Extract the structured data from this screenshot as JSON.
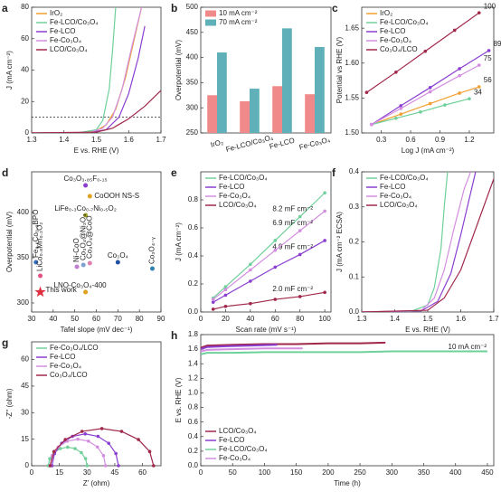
{
  "chart_data": [
    {
      "label": "a",
      "type": "line",
      "xlabel": "E vs. RHE (V)",
      "ylabel": "J (mA cm⁻²)",
      "xlim": [
        1.3,
        1.7
      ],
      "xticks": [
        1.3,
        1.4,
        1.5,
        1.6,
        1.7
      ],
      "ylim": [
        0,
        80
      ],
      "yticks": [
        0,
        20,
        40,
        60,
        80
      ],
      "reference_line": 10,
      "legend": "upper left",
      "series": [
        {
          "name": "IrO₂",
          "color": "#f0a030",
          "x": [
            1.3,
            1.45,
            1.5,
            1.53,
            1.56,
            1.59,
            1.62,
            1.64
          ],
          "values": [
            0,
            0.3,
            1.5,
            5,
            15,
            35,
            62,
            80
          ]
        },
        {
          "name": "Fe-LCO/Co₃O₄",
          "color": "#6fd09a",
          "x": [
            1.3,
            1.45,
            1.5,
            1.52,
            1.54,
            1.55,
            1.56
          ],
          "values": [
            0,
            0.3,
            2,
            8,
            28,
            52,
            80
          ]
        },
        {
          "name": "Fe-LCO",
          "color": "#8a3fd0",
          "x": [
            1.3,
            1.48,
            1.53,
            1.57,
            1.6,
            1.63,
            1.65
          ],
          "values": [
            0,
            0.3,
            2,
            10,
            25,
            48,
            68
          ]
        },
        {
          "name": "Fe-Co₃O₄",
          "color": "#d48ee0",
          "x": [
            1.3,
            1.48,
            1.52,
            1.55,
            1.58,
            1.61,
            1.64
          ],
          "values": [
            0,
            0.3,
            3,
            10,
            28,
            55,
            80
          ]
        },
        {
          "name": "LCO/Co₃O₄",
          "color": "#a0284a",
          "x": [
            1.3,
            1.5,
            1.55,
            1.6,
            1.65,
            1.7
          ],
          "values": [
            0,
            0.5,
            3,
            9,
            17,
            27
          ]
        }
      ]
    },
    {
      "label": "b",
      "type": "bar",
      "ylabel": "Overpotential (mV)",
      "categories": [
        "IrO₂",
        "Fe-LCO/Co₃O₄",
        "Fe-LCO",
        "Fe-Co₃O₄"
      ],
      "ylim": [
        250,
        500
      ],
      "yticks": [
        250,
        300,
        350,
        400,
        450,
        500
      ],
      "legend": "upper left",
      "series": [
        {
          "name": "10 mA cm⁻²",
          "color": "#f08a8a",
          "values": [
            325,
            313,
            343,
            327
          ]
        },
        {
          "name": "70 mA cm⁻²",
          "color": "#5fb0b8",
          "values": [
            410,
            338,
            458,
            421
          ]
        }
      ]
    },
    {
      "label": "c",
      "type": "line",
      "markers": true,
      "xlabel": "Log J (mA cm⁻²)",
      "ylabel": "Potential vs RHE (V)",
      "xlim": [
        0.1,
        1.45
      ],
      "xticks": [
        0.3,
        0.6,
        0.9,
        1.2
      ],
      "ylim": [
        1.5,
        1.68
      ],
      "yticks": [
        {
          "value": 1.5,
          "label": "1.50"
        },
        {
          "value": 1.55,
          "label": "1.55"
        },
        {
          "value": 1.6,
          "label": "1.60"
        },
        {
          "value": 1.65,
          "label": "1.65"
        }
      ],
      "legend": "upper left",
      "series": [
        {
          "name": "IrO₂",
          "color": "#f0a030",
          "slope": 56,
          "x": [
            0.2,
            0.5,
            0.8,
            1.1,
            1.3
          ],
          "values": [
            1.512,
            1.527,
            1.542,
            1.557,
            1.566
          ]
        },
        {
          "name": "Fe-LCO/Co₃O₄",
          "color": "#6fd09a",
          "slope": 34,
          "x": [
            0.2,
            0.45,
            0.7,
            0.95,
            1.2
          ],
          "values": [
            1.512,
            1.521,
            1.53,
            1.54,
            1.549
          ]
        },
        {
          "name": "Fe-LCO",
          "color": "#8a3fd0",
          "slope": 89,
          "x": [
            0.2,
            0.5,
            0.8,
            1.1,
            1.4
          ],
          "values": [
            1.512,
            1.539,
            1.565,
            1.592,
            1.618
          ]
        },
        {
          "name": "Fe-Co₃O₄",
          "color": "#d48ee0",
          "slope": 75,
          "x": [
            0.2,
            0.5,
            0.8,
            1.1,
            1.3
          ],
          "values": [
            1.512,
            1.535,
            1.559,
            1.582,
            1.597
          ]
        },
        {
          "name": "Co₃O₄/LCO",
          "color": "#a0284a",
          "slope": 100,
          "x": [
            0.15,
            0.45,
            0.75,
            1.05,
            1.3
          ],
          "values": [
            1.558,
            1.587,
            1.617,
            1.647,
            1.672
          ]
        }
      ]
    },
    {
      "label": "d",
      "type": "scatter",
      "xlabel": "Tafel slope (mV dec⁻¹)",
      "ylabel": "Overpotential (mV)",
      "xlim": [
        30,
        90
      ],
      "xticks": [
        30,
        40,
        50,
        60,
        70,
        80,
        90
      ],
      "ylim": [
        290,
        445
      ],
      "yticks": [
        300,
        350,
        400
      ],
      "points": [
        {
          "label": "Co₃O₃.₈₅F₀.₁₅",
          "x": 55,
          "y": 430,
          "color": "#8a3fd0"
        },
        {
          "label": "CoOOH NS-S",
          "x": 57,
          "y": 418,
          "color": "#e0a020"
        },
        {
          "label": "LiFe₀.₃Co₀.₇Ni₀.₅O₂",
          "x": 55,
          "y": 397,
          "color": "#a0a020"
        },
        {
          "label": "Fe₀.₁Co₀.₉BPO",
          "x": 32,
          "y": 345,
          "color": "#3a70c0"
        },
        {
          "label": "LiCo₀.₈Mn₀.₂O₂",
          "x": 34,
          "y": 330,
          "color": "#e05080"
        },
        {
          "label": "Ni-CoO",
          "x": 51,
          "y": 340,
          "color": "#c080d0"
        },
        {
          "label": "Co₃O₄@Ni₃O₄",
          "x": 54,
          "y": 342,
          "color": "#80a0d0"
        },
        {
          "label": "Co₃O₄@CoO",
          "x": 57,
          "y": 344,
          "color": "#e080b0"
        },
        {
          "label": "Co₃O₄",
          "x": 70,
          "y": 345,
          "color": "#2050a0"
        },
        {
          "label": "Co₃O₄₋ᵧ",
          "x": 86,
          "y": 338,
          "color": "#3080b0"
        },
        {
          "label": "LNO-Co₃O₄-400",
          "x": 55,
          "y": 312,
          "color": "#e0a020"
        },
        {
          "label": "This work",
          "x": 34,
          "y": 312,
          "color": "#e03040",
          "marker": "star"
        }
      ]
    },
    {
      "label": "e",
      "type": "line",
      "markers": true,
      "xlabel": "Scan rate (mV s⁻¹)",
      "ylabel": "J (mA cm⁻²)",
      "xlim": [
        0,
        105
      ],
      "xticks": [
        0,
        20,
        40,
        60,
        80,
        100
      ],
      "ylim": [
        0,
        1.0
      ],
      "yticks": [
        {
          "value": 0,
          "label": "0.0"
        },
        {
          "value": 0.2,
          "label": "0.2"
        },
        {
          "value": 0.4,
          "label": "0.4"
        },
        {
          "value": 0.6,
          "label": "0.6"
        },
        {
          "value": 0.8,
          "label": "0.8"
        }
      ],
      "legend": "upper left",
      "x": [
        10,
        20,
        40,
        60,
        80,
        100
      ],
      "series": [
        {
          "name": "Fe-LCO/Co₃O₄",
          "color": "#6fd09a",
          "annotation": "8.2 mF cm⁻²",
          "values": [
            0.1,
            0.18,
            0.34,
            0.51,
            0.68,
            0.85
          ]
        },
        {
          "name": "Fe-LCO",
          "color": "#8a3fd0",
          "annotation": "4.9 mF cm⁻²",
          "values": [
            0.07,
            0.12,
            0.22,
            0.32,
            0.41,
            0.51
          ]
        },
        {
          "name": "Fe-Co₃O₄",
          "color": "#d48ee0",
          "annotation": "6.9 mF cm⁻²",
          "values": [
            0.09,
            0.16,
            0.3,
            0.44,
            0.58,
            0.72
          ]
        },
        {
          "name": "LCO/Co₃O₄",
          "color": "#a0284a",
          "annotation": "2.0 mF cm⁻²",
          "values": [
            0.02,
            0.04,
            0.06,
            0.09,
            0.11,
            0.14
          ]
        }
      ]
    },
    {
      "label": "f",
      "type": "line",
      "xlabel": "E vs. RHE (V)",
      "ylabel": "J (mA cm⁻² ECSA)",
      "xlim": [
        1.3,
        1.7
      ],
      "xticks": [
        1.3,
        1.4,
        1.5,
        1.6,
        1.7
      ],
      "ylim": [
        0,
        0.4
      ],
      "yticks": [
        {
          "value": 0,
          "label": "0.0"
        },
        {
          "value": 0.1,
          "label": "0.1"
        },
        {
          "value": 0.2,
          "label": "0.2"
        },
        {
          "value": 0.3,
          "label": "0.3"
        },
        {
          "value": 0.4,
          "label": "0.4"
        }
      ],
      "legend": "upper left",
      "series": [
        {
          "name": "Fe-LCO/Co₃O₄",
          "color": "#6fd09a",
          "x": [
            1.3,
            1.45,
            1.5,
            1.52,
            1.54,
            1.55,
            1.56
          ],
          "values": [
            0,
            0.002,
            0.02,
            0.07,
            0.18,
            0.3,
            0.4
          ]
        },
        {
          "name": "Fe-LCO",
          "color": "#8a3fd0",
          "x": [
            1.3,
            1.48,
            1.53,
            1.57,
            1.6,
            1.63,
            1.645
          ],
          "values": [
            0,
            0.003,
            0.03,
            0.11,
            0.22,
            0.34,
            0.4
          ]
        },
        {
          "name": "Fe-Co₃O₄",
          "color": "#d48ee0",
          "x": [
            1.3,
            1.48,
            1.52,
            1.55,
            1.58,
            1.61,
            1.63
          ],
          "values": [
            0,
            0.004,
            0.04,
            0.12,
            0.24,
            0.35,
            0.4
          ]
        },
        {
          "name": "LCO/Co₃O₄",
          "color": "#a0284a",
          "x": [
            1.3,
            1.5,
            1.55,
            1.6,
            1.65,
            1.7
          ],
          "values": [
            0,
            0.005,
            0.04,
            0.12,
            0.25,
            0.38
          ]
        }
      ]
    },
    {
      "label": "g",
      "type": "line",
      "markers": true,
      "xlabel": "Z' (ohm)",
      "ylabel": "-Z'' (ohm)",
      "xlim": [
        0,
        70
      ],
      "xticks": [
        0,
        15,
        30,
        45,
        60
      ],
      "ylim": [
        0,
        70
      ],
      "yticks": [
        0,
        15,
        30,
        45,
        60
      ],
      "legend": "upper left",
      "series": [
        {
          "name": "Fe-Co₃O₄/LCO",
          "color": "#6fd09a",
          "x": [
            30,
            29.2,
            26.9,
            23.5,
            19.5,
            15.5,
            12.1,
            9.8,
            9
          ],
          "values": [
            0,
            4,
            7.4,
            9.7,
            10.5,
            9.7,
            7.4,
            4,
            0
          ]
        },
        {
          "name": "Fe-LCO",
          "color": "#8a3fd0",
          "x": [
            47,
            45.6,
            41.7,
            35.9,
            29,
            22.1,
            16.3,
            12.4,
            11
          ],
          "values": [
            0,
            6.9,
            12.7,
            16.6,
            18,
            16.6,
            12.7,
            6.9,
            0
          ]
        },
        {
          "name": "Fe-Co₃O₄",
          "color": "#d48ee0",
          "x": [
            40,
            38.9,
            35.6,
            30.7,
            25,
            19.3,
            14.4,
            11.1,
            10
          ],
          "values": [
            0,
            5.7,
            10.6,
            13.9,
            15,
            13.9,
            10.6,
            5.7,
            0
          ]
        },
        {
          "name": "Co₃O₄/LCO",
          "color": "#a0284a",
          "x": [
            66,
            63.9,
            57.8,
            48.7,
            38,
            27.3,
            18.2,
            12.1,
            10
          ],
          "values": [
            0,
            8,
            14.8,
            19.4,
            21,
            19.4,
            14.8,
            8,
            0
          ]
        }
      ]
    },
    {
      "label": "h",
      "type": "line",
      "xlabel": "Time (h)",
      "ylabel": "E vs. RHE (V)",
      "annotation": "10 mA cm⁻²",
      "xlim": [
        0,
        460
      ],
      "xticks": [
        0,
        50,
        100,
        150,
        200,
        250,
        300,
        350,
        400,
        450
      ],
      "ylim": [
        0,
        1.8
      ],
      "yticks": [
        {
          "value": 0,
          "label": "0.0"
        },
        {
          "value": 0.2,
          "label": "0.2"
        },
        {
          "value": 0.4,
          "label": "0.4"
        },
        {
          "value": 0.6,
          "label": "0.6"
        },
        {
          "value": 0.8,
          "label": "0.8"
        },
        {
          "value": 1.0,
          "label": "1.0"
        },
        {
          "value": 1.2,
          "label": "1.2"
        },
        {
          "value": 1.4,
          "label": "1.4"
        },
        {
          "value": 1.6,
          "label": "1.6"
        },
        {
          "value": 1.8,
          "label": "1.8"
        }
      ],
      "legend": "lower left",
      "series": [
        {
          "name": "LCO/Co₃O₄",
          "color": "#a0284a",
          "x": [
            0,
            10,
            50,
            100,
            150,
            200,
            250,
            290
          ],
          "values": [
            1.62,
            1.65,
            1.66,
            1.67,
            1.67,
            1.68,
            1.68,
            1.69
          ]
        },
        {
          "name": "Fe-LCO",
          "color": "#8a3fd0",
          "x": [
            0,
            10,
            40,
            80,
            120
          ],
          "values": [
            1.6,
            1.63,
            1.64,
            1.65,
            1.66
          ]
        },
        {
          "name": "Fe-LCO/Co₃O₄",
          "color": "#6fd09a",
          "x": [
            0,
            10,
            50,
            100,
            150,
            200,
            250,
            300,
            350,
            400,
            450
          ],
          "values": [
            1.53,
            1.55,
            1.55,
            1.56,
            1.56,
            1.56,
            1.56,
            1.57,
            1.57,
            1.57,
            1.57
          ]
        },
        {
          "name": "Fe-Co₃O₄",
          "color": "#d48ee0",
          "x": [
            0,
            10,
            50,
            100,
            160
          ],
          "values": [
            1.57,
            1.59,
            1.6,
            1.61,
            1.61
          ]
        }
      ]
    }
  ]
}
